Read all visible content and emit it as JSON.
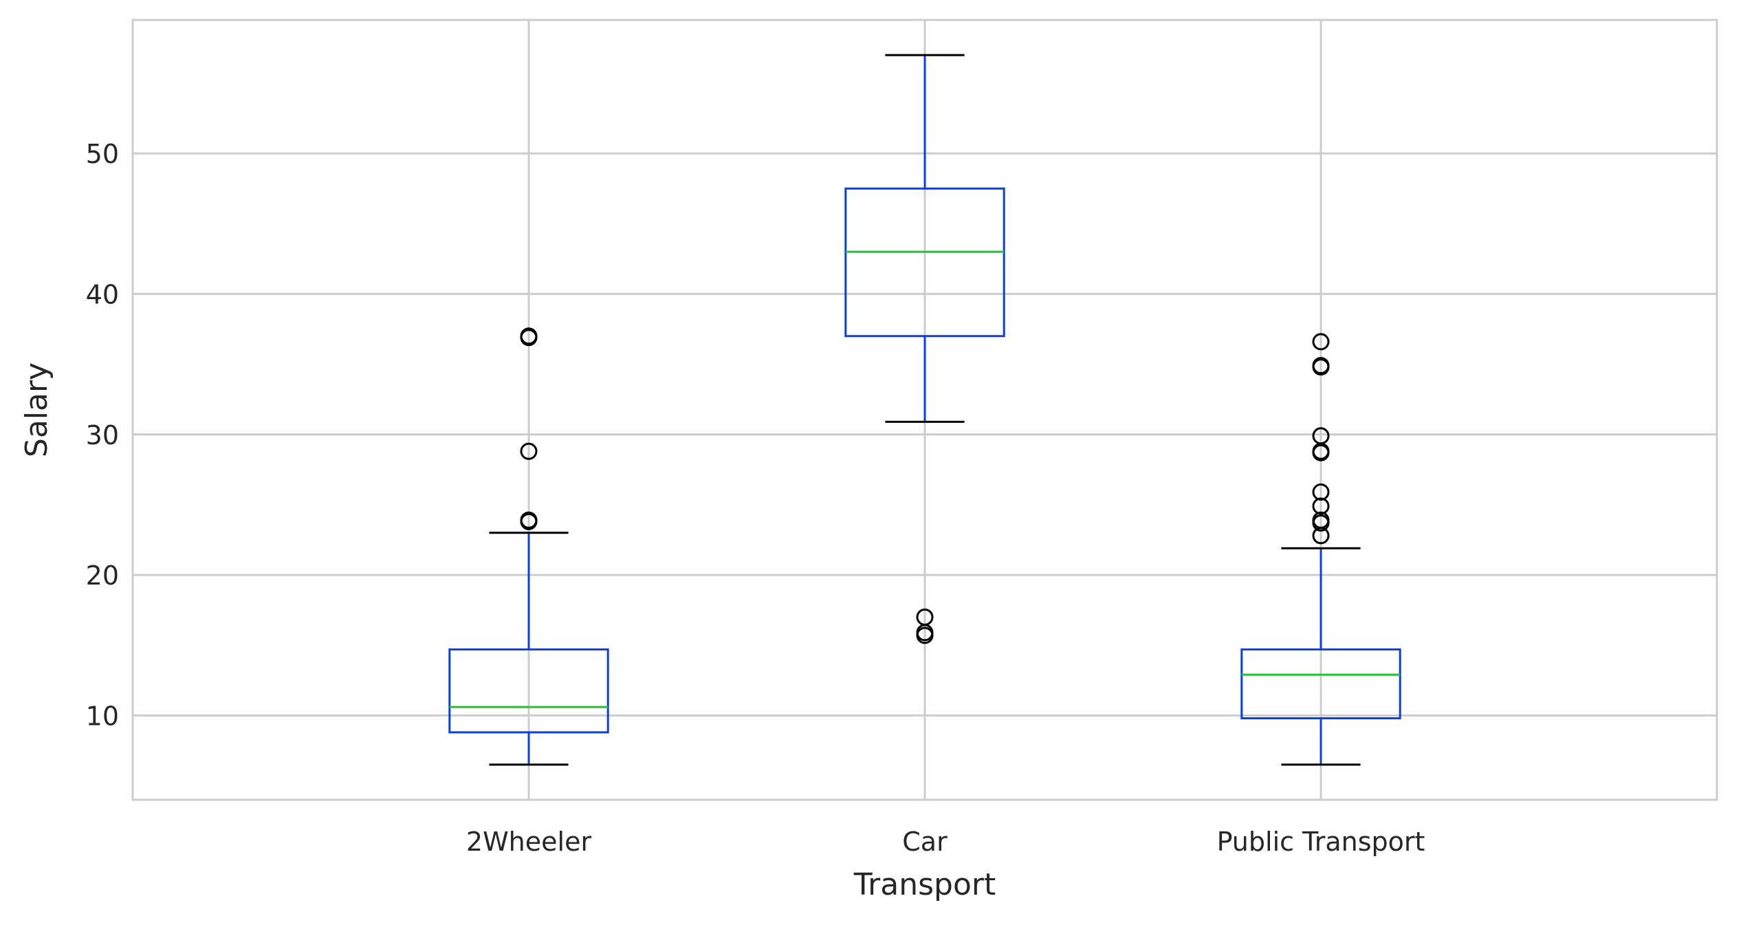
{
  "chart_data": {
    "type": "boxplot",
    "title": "",
    "xlabel": "Transport",
    "ylabel": "Salary",
    "ylim": [
      4,
      59.5
    ],
    "yticks": [
      10,
      20,
      30,
      40,
      50
    ],
    "grid": true,
    "categories": [
      "2Wheeler",
      "Car",
      "Public Transport"
    ],
    "boxes": [
      {
        "category": "2Wheeler",
        "whisker_low": 6.5,
        "q1": 8.8,
        "median": 10.6,
        "q3": 14.7,
        "whisker_high": 23.0,
        "outliers": [
          23.8,
          23.9,
          28.8,
          36.9,
          37.0
        ]
      },
      {
        "category": "Car",
        "whisker_low": 30.9,
        "q1": 37.0,
        "median": 43.0,
        "q3": 47.5,
        "whisker_high": 57.0,
        "outliers": [
          15.7,
          15.9,
          17.0
        ]
      },
      {
        "category": "Public Transport",
        "whisker_low": 6.5,
        "q1": 9.8,
        "median": 12.9,
        "q3": 14.7,
        "whisker_high": 21.9,
        "outliers": [
          22.8,
          23.7,
          23.9,
          24.9,
          25.9,
          28.7,
          28.8,
          29.9,
          34.8,
          34.9,
          36.6
        ]
      }
    ],
    "colors": {
      "box": "#0b3fe6",
      "whisker": "#0b3fe6",
      "cap": "#000000",
      "median": "#22c232",
      "outlier": "#000000",
      "grid": "#cccccc",
      "frame": "#cccccc",
      "text": "#262626"
    }
  }
}
